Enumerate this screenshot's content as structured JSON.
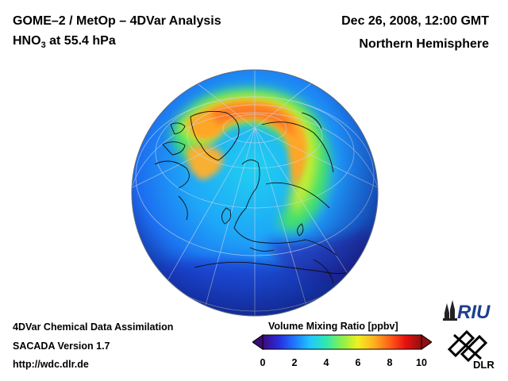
{
  "header": {
    "title_left": "GOME–2 / MetOp – 4DVar Analysis",
    "species": "HNO",
    "species_sub": "3",
    "level": " at 55.4 hPa",
    "date": "Dec 26, 2008, 12:00 GMT",
    "region": "Northern Hemisphere"
  },
  "footer": {
    "line1": "4DVar Chemical Data Assimilation",
    "line2": "SACADA Version 1.7",
    "line3": "http://wdc.dlr.de"
  },
  "colorbar": {
    "title": "Volume Mixing Ratio [ppbv]",
    "ticks": [
      "0",
      "2",
      "4",
      "6",
      "8",
      "10"
    ],
    "range": [
      0,
      10
    ],
    "colors": [
      "#3b0b7a",
      "#2a2adc",
      "#1e78ff",
      "#20c8ff",
      "#2fe8b0",
      "#8cf04a",
      "#f0f020",
      "#ffb020",
      "#ff6018",
      "#e81010",
      "#901010"
    ]
  },
  "logos": {
    "riu": "RIU",
    "dlr": "DLR"
  }
}
